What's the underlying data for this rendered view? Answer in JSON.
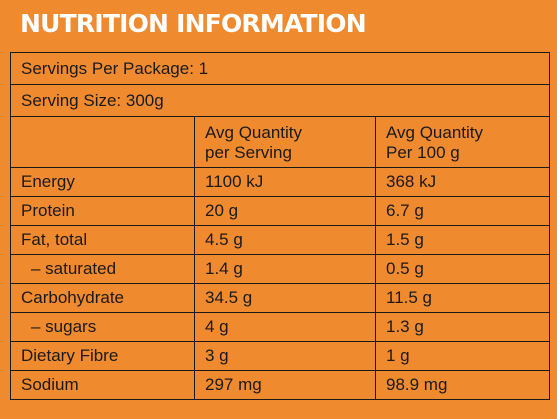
{
  "title": "NUTRITION INFORMATION",
  "servings_per_package": "Servings Per Package: 1",
  "serving_size": "Serving Size: 300g",
  "columns": {
    "per_serving": [
      "Avg Quantity",
      "per Serving"
    ],
    "per_100g": [
      "Avg Quantity",
      "Per 100 g"
    ]
  },
  "rows": [
    {
      "label": "Energy",
      "per_serving": "1100 kJ",
      "per_100g": "368 kJ"
    },
    {
      "label": "Protein",
      "per_serving": "20 g",
      "per_100g": "6.7 g"
    },
    {
      "label": "Fat, total",
      "per_serving": "4.5 g",
      "per_100g": "1.5 g"
    },
    {
      "label": "– saturated",
      "per_serving": "1.4 g",
      "per_100g": "0.5 g"
    },
    {
      "label": "Carbohydrate",
      "per_serving": "34.5 g",
      "per_100g": "11.5 g"
    },
    {
      "label": "– sugars",
      "per_serving": "4 g",
      "per_100g": "1.3 g"
    },
    {
      "label": "Dietary Fibre",
      "per_serving": "3 g",
      "per_100g": "1 g"
    },
    {
      "label": "Sodium",
      "per_serving": "297 mg",
      "per_100g": "98.9 mg"
    }
  ],
  "colors": {
    "background": "#f08a2e",
    "title_text": "#ffffff",
    "text": "#1a1a1a",
    "border": "#1a1a1a"
  }
}
